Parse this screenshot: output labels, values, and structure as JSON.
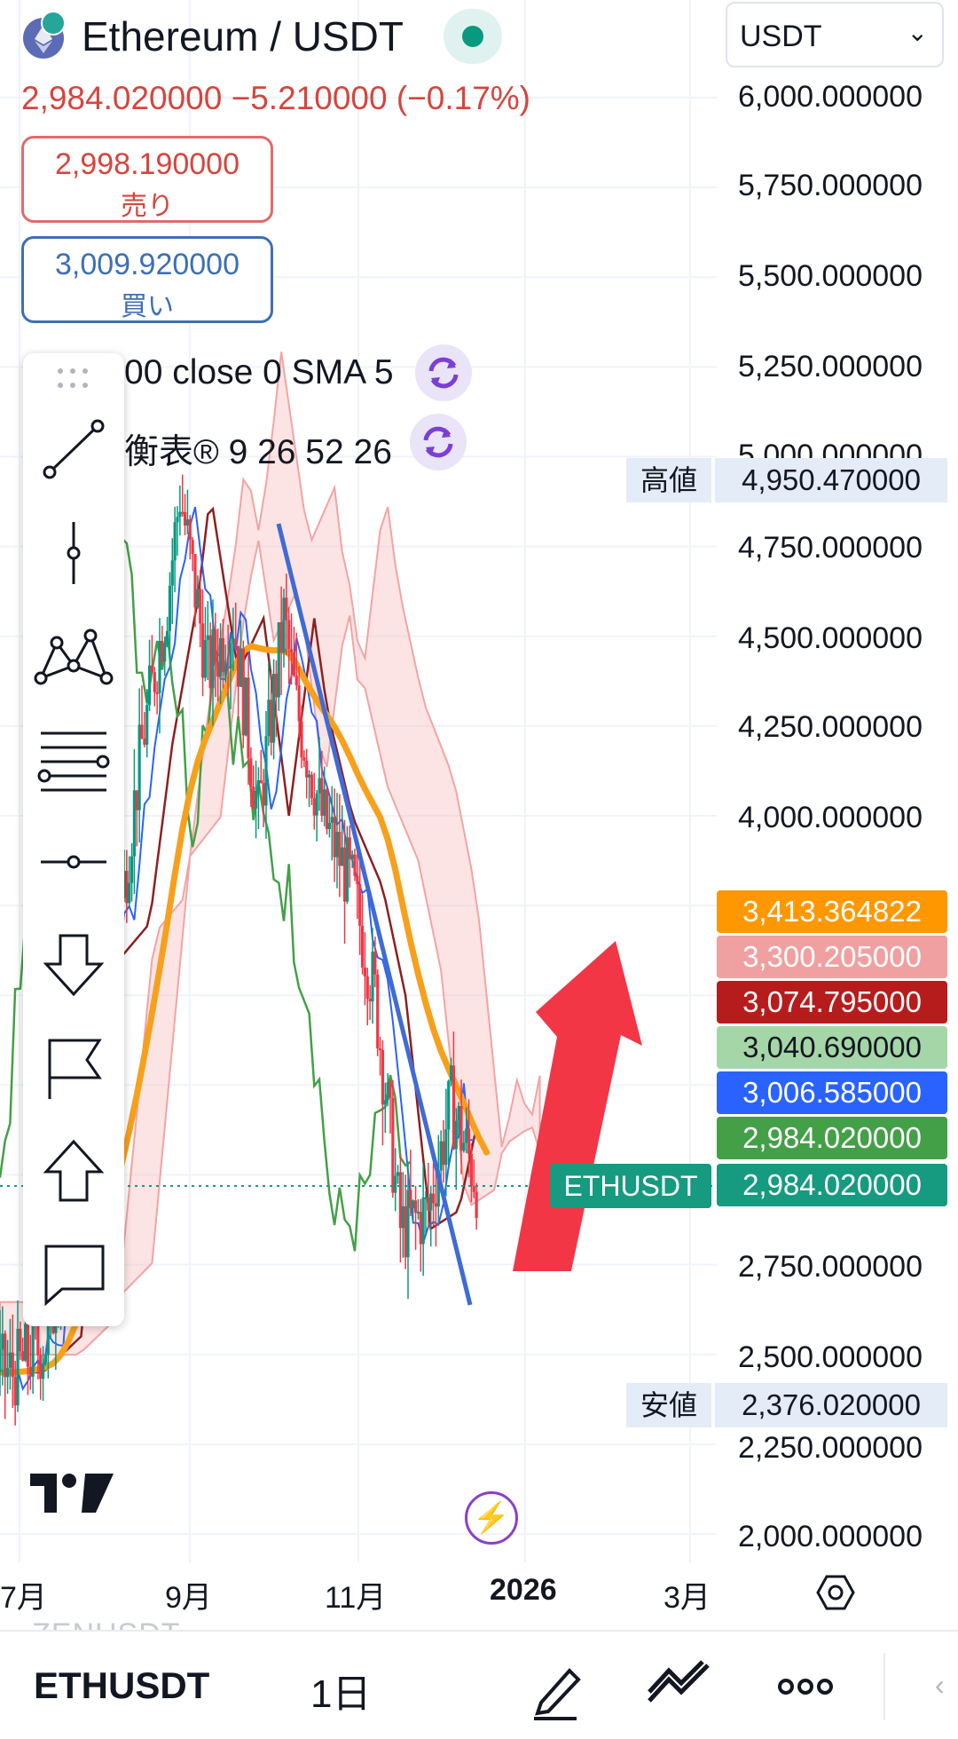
{
  "header": {
    "pair_title": "Ethereum / USDT",
    "price_change_line": "2,984.020000  −5.210000 (−0.17%)",
    "sell_price": "2,998.190000",
    "sell_label": "売り",
    "buy_price": "3,009.920000",
    "buy_label": "買い",
    "currency": "USDT"
  },
  "indicators": [
    {
      "label": "00 close 0 SMA 5"
    },
    {
      "label": "衡表® 9 26 52 26"
    }
  ],
  "y_axis": {
    "ticks": [
      "6,000.000000",
      "5,750.000000",
      "5,500.000000",
      "5,250.000000",
      "4,750.000000",
      "4,500.000000",
      "4,250.000000",
      "4,000.000000",
      "2,750.000000",
      "2,500.000000",
      "2,250.000000",
      "2,000.000000"
    ],
    "partial_tick": "5,000.000000",
    "high_label": "高値",
    "high_value": "4,950.470000",
    "low_label": "安値",
    "low_value": "2,376.020000"
  },
  "price_tags": [
    {
      "value": "3,413.364822",
      "color": "#ff9800"
    },
    {
      "value": "3,300.205000",
      "color": "#f0a0a0"
    },
    {
      "value": "3,074.795000",
      "color": "#b71c1c"
    },
    {
      "value": "3,040.690000",
      "color": "#a5d6a7"
    },
    {
      "value": "3,006.585000",
      "color": "#2962ff"
    },
    {
      "value": "2,984.020000",
      "color": "#43a047"
    },
    {
      "value": "2,984.020000",
      "color": "#169a80"
    }
  ],
  "symbol_tag": "ETHUSDT",
  "x_axis": {
    "labels": [
      "7月",
      "9月",
      "11月",
      "2026",
      "3月"
    ]
  },
  "toolbar": {
    "tools": [
      "trend-line-icon",
      "vertical-line-icon",
      "pattern-icon",
      "fib-lines-icon",
      "horizontal-ray-icon",
      "arrow-down-icon",
      "flag-icon",
      "arrow-up-icon",
      "comment-icon"
    ]
  },
  "bottom_bar": {
    "ghost_text": "ZENUSDT",
    "symbol": "ETHUSDT",
    "interval": "1日",
    "icons": [
      "pencil-icon",
      "draw-tools-icon",
      "more-icon"
    ]
  },
  "colors": {
    "up": "#089981",
    "down": "#f23645",
    "sma": "#f7a01c",
    "cloud_red": "#f9c4c4",
    "cloud_green": "#c9e8c9",
    "trendline": "#3f6bd6",
    "arrow": "#f23645"
  },
  "chart_data": {
    "type": "candlestick",
    "symbol": "ETHUSDT",
    "interval": "1日",
    "ylim": [
      2000,
      6000
    ],
    "last_price": 2984.02,
    "high": 4950.47,
    "low": 2376.02,
    "x_ticks": [
      "7月",
      "9月",
      "11月",
      "2026",
      "3月"
    ],
    "close_path": [
      {
        "date": "2025-06-20",
        "close": 2450
      },
      {
        "date": "2025-07-05",
        "close": 2550
      },
      {
        "date": "2025-07-20",
        "close": 3600
      },
      {
        "date": "2025-08-01",
        "close": 3700
      },
      {
        "date": "2025-08-10",
        "close": 4200
      },
      {
        "date": "2025-08-20",
        "close": 4600
      },
      {
        "date": "2025-08-25",
        "close": 4900
      },
      {
        "date": "2025-09-05",
        "close": 4400
      },
      {
        "date": "2025-09-15",
        "close": 4550
      },
      {
        "date": "2025-09-25",
        "close": 4000
      },
      {
        "date": "2025-10-05",
        "close": 4550
      },
      {
        "date": "2025-10-10",
        "close": 4300
      },
      {
        "date": "2025-10-20",
        "close": 4000
      },
      {
        "date": "2025-11-01",
        "close": 3800
      },
      {
        "date": "2025-11-10",
        "close": 3500
      },
      {
        "date": "2025-11-20",
        "close": 2850
      },
      {
        "date": "2025-12-01",
        "close": 2900
      },
      {
        "date": "2025-12-10",
        "close": 3200
      },
      {
        "date": "2025-12-20",
        "close": 2984.02
      }
    ]
  }
}
